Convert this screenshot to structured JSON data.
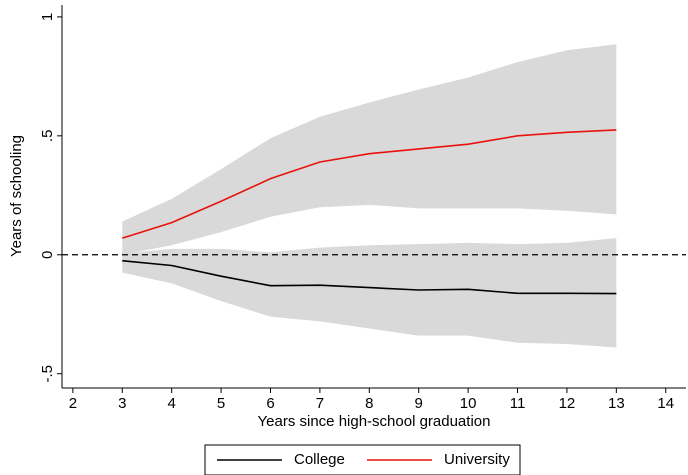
{
  "chart_data": {
    "type": "line",
    "x_label": "Years since high-school graduation",
    "y_label": "Years of schooling",
    "x": [
      3,
      4,
      5,
      6,
      7,
      8,
      9,
      10,
      11,
      12,
      13
    ],
    "series": [
      {
        "name": "College",
        "color": "#000000",
        "values": [
          -0.025,
          -0.045,
          -0.09,
          -0.13,
          -0.128,
          -0.138,
          -0.148,
          -0.145,
          -0.162,
          -0.162,
          -0.163
        ],
        "upper": [
          0.005,
          0.025,
          0.025,
          0.01,
          0.03,
          0.04,
          0.045,
          0.05,
          0.045,
          0.05,
          0.07
        ],
        "lower": [
          -0.075,
          -0.12,
          -0.195,
          -0.26,
          -0.28,
          -0.31,
          -0.34,
          -0.34,
          -0.37,
          -0.375,
          -0.39
        ]
      },
      {
        "name": "University",
        "color": "#e8120c",
        "values": [
          0.07,
          0.135,
          0.225,
          0.32,
          0.39,
          0.425,
          0.445,
          0.465,
          0.5,
          0.515,
          0.525
        ],
        "upper": [
          0.14,
          0.235,
          0.36,
          0.49,
          0.58,
          0.64,
          0.695,
          0.745,
          0.81,
          0.86,
          0.885
        ],
        "lower": [
          0.0,
          0.04,
          0.095,
          0.16,
          0.2,
          0.21,
          0.195,
          0.195,
          0.195,
          0.185,
          0.17
        ]
      }
    ],
    "band_color": "#d9d9d9",
    "reference_line": 0,
    "xlim": [
      1.78,
      14.41
    ],
    "xticks": [
      2,
      3,
      4,
      5,
      6,
      7,
      8,
      9,
      10,
      11,
      12,
      13,
      14
    ],
    "ylim": [
      -0.56,
      1.05
    ],
    "yticks": [
      {
        "value": -0.5,
        "label": "-.5"
      },
      0,
      {
        "value": 0.5,
        "label": ".5"
      },
      1
    ],
    "legend": "bottom"
  }
}
